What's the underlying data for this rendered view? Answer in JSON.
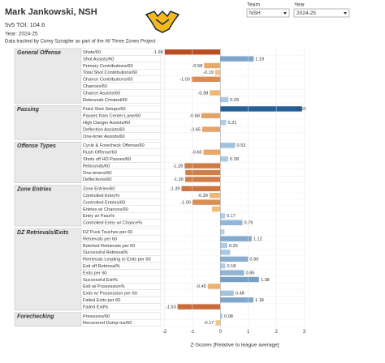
{
  "header": {
    "title": "Mark Jankowski, NSH",
    "toi": "5v5 TOI: 104.6",
    "year": "Year: 2024-25",
    "credit": "Data tracked by Corey Sznajder as part of the All Three Zones Project"
  },
  "filters": {
    "team_label": "Team",
    "team_value": "NSH",
    "year_label": "Year",
    "year_value": "2024-25"
  },
  "chart_data": {
    "type": "bar",
    "orientation": "horizontal",
    "xlabel": "Z-Scores [Relative to league average]",
    "xlim": [
      -2.1,
      3.1
    ],
    "xticks": [
      -2,
      -1,
      0,
      1,
      2,
      3
    ],
    "colors": {
      "negative_light": "#fbd08a",
      "negative_dark": "#b5451b",
      "positive_light": "#bcd6ec",
      "positive_dark": "#1d5a94"
    },
    "groups": [
      {
        "name": "General Offense",
        "categories": [
          "Shots/60",
          "Shot Assists/60",
          "Primary Contributions/60",
          "Total Shot Contributions/60",
          "Chance Contributions/60",
          "Chances/60",
          "Chance Assists/60",
          "Rebounds Created/60"
        ],
        "values": [
          -1.99,
          1.19,
          -0.58,
          -0.19,
          -1.03,
          null,
          -0.38,
          0.29
        ],
        "value_labels": [
          "-1.99",
          "1.19",
          "-0.58",
          "-0.19",
          "-1.03",
          null,
          "-0.38",
          "0.29"
        ]
      },
      {
        "name": "Passing",
        "categories": [
          "Point Shot Setups/60",
          "Passes from Center Lane/60",
          "High Danger Assists/60",
          "Deflection Assists/60",
          "One-timer Assists/60"
        ],
        "values": [
          2.92,
          -0.68,
          0.21,
          -0.65,
          null
        ],
        "value_labels": [
          "2.92",
          "-0.68",
          "0.21",
          "-0.65",
          null
        ]
      },
      {
        "name": "Offense Types",
        "categories": [
          "Cycle & Forecheck Offense/60",
          "Rush Offense/60",
          "Shots off HD Passes/60",
          "Rebounds/60",
          "One-timers/60",
          "Deflections/60"
        ],
        "values": [
          0.53,
          -0.6,
          0.28,
          -1.28,
          -1.25,
          -1.26
        ],
        "value_labels": [
          "0.53",
          "-0.60",
          "0.28",
          "-1.28",
          null,
          "-1.26"
        ]
      },
      {
        "name": "Zone Entries",
        "categories": [
          "Zone Entries/60",
          "Controlled Entry%",
          "Controlled Entries/60",
          "Entries w/ Chances/60",
          "Entry w/ Pass%",
          "Controlled Entry w/ Chance%"
        ],
        "values": [
          -1.39,
          -0.39,
          -1.0,
          -0.3,
          0.17,
          0.79
        ],
        "value_labels": [
          "-1.39",
          "-0.39",
          "-1.00",
          null,
          "0.17",
          "0.79"
        ]
      },
      {
        "name": "DZ Retrievals/Exits",
        "categories": [
          "DZ Puck Touches per 60",
          "Retrievals per 60",
          "Botched Retrievals per 60",
          "Successful Retrieval%",
          "Retrievals Leading to Exits per 60",
          "Exit off Retrieval%",
          "Exits per 60",
          "Successful Exit%",
          "Exit w/ Possession%",
          "Exits w/ Possession per 60",
          "Failed Exits per 60",
          "Failed Exit%"
        ],
        "values": [
          0.15,
          1.12,
          0.25,
          0.35,
          0.99,
          0.18,
          0.85,
          1.38,
          -0.45,
          0.48,
          1.18,
          -1.53
        ],
        "value_labels": [
          null,
          "1.12",
          "0.25",
          null,
          "0.99",
          "0.18",
          "0.85",
          "1.38",
          "-0.45",
          "0.48",
          "1.18",
          "-1.53"
        ]
      },
      {
        "name": "Forechecking",
        "categories": [
          "Pressures/60",
          "Recovered Dump-ins/60"
        ],
        "values": [
          0.08,
          -0.17
        ],
        "value_labels": [
          "0.08",
          "-0.17"
        ]
      }
    ]
  }
}
